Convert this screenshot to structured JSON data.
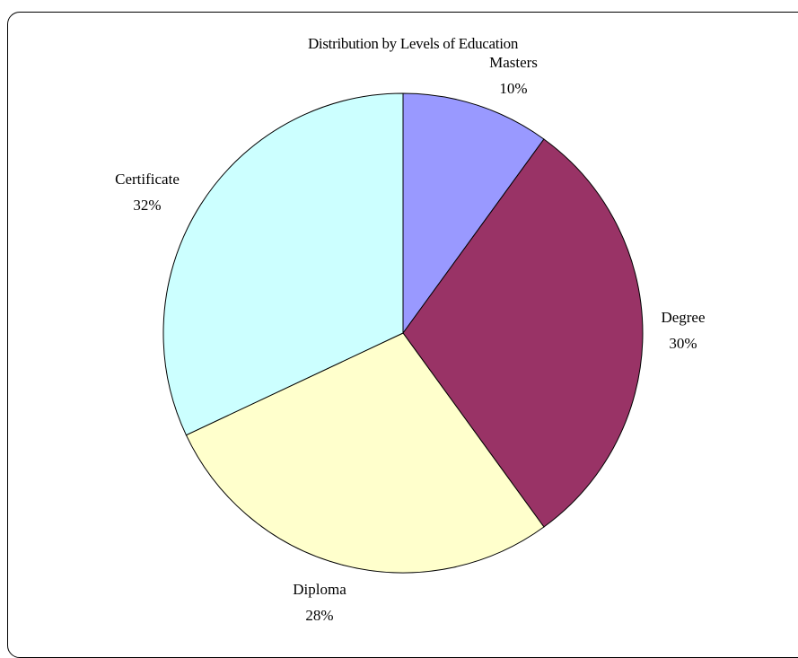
{
  "chart_data": {
    "type": "pie",
    "title": "Distribution by Levels of Education",
    "categories": [
      "Masters",
      "Degree",
      "Diploma",
      "Certificate"
    ],
    "values": [
      10,
      30,
      28,
      32
    ],
    "value_labels": [
      "10%",
      "30%",
      "28%",
      "32%"
    ],
    "colors": [
      "#9999FF",
      "#993366",
      "#FFFFCC",
      "#CCFFFF"
    ],
    "start": "12 o'clock",
    "direction": "clockwise",
    "legend": "none"
  }
}
